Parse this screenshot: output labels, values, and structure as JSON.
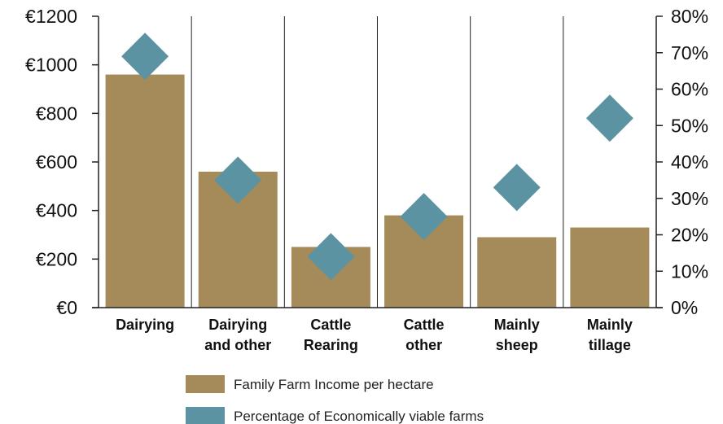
{
  "chart_data": {
    "type": "bar",
    "categories": [
      [
        "Dairying"
      ],
      [
        "Dairying",
        "and other"
      ],
      [
        "Cattle",
        "Rearing"
      ],
      [
        "Cattle",
        "other"
      ],
      [
        "Mainly",
        "sheep"
      ],
      [
        "Mainly",
        "tillage"
      ]
    ],
    "series": [
      {
        "name": "Family Farm Income per hectare",
        "type": "bar",
        "axis": "left",
        "color": "#a58a5a",
        "values": [
          960,
          560,
          250,
          380,
          290,
          330
        ]
      },
      {
        "name": "Percentage of Economically viable farms",
        "type": "scatter",
        "marker": "diamond",
        "axis": "right",
        "color": "#5b93a2",
        "values": [
          69,
          35,
          14,
          25,
          33,
          52
        ]
      }
    ],
    "y_left": {
      "ylim": [
        0,
        1200
      ],
      "tick_labels": [
        "€0",
        "€200",
        "€400",
        "€600",
        "€800",
        "€1000",
        "€1200"
      ]
    },
    "y_right": {
      "ylim": [
        0,
        80
      ],
      "tick_labels": [
        "0%",
        "10%",
        "20%",
        "30%",
        "40%",
        "50%",
        "60%",
        "70%",
        "80%"
      ]
    },
    "title": "",
    "xlabel": "",
    "grid": false,
    "category_separators": true,
    "legend_placement": "bottom-center"
  }
}
